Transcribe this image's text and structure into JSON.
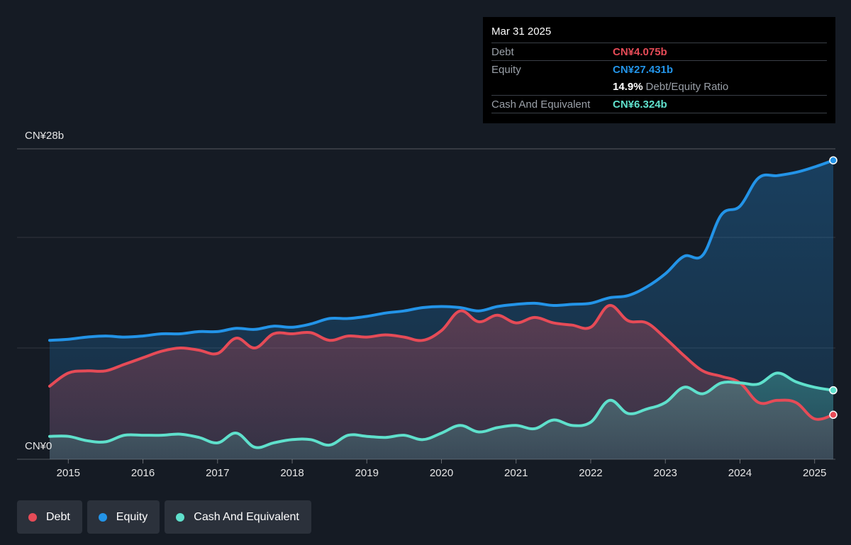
{
  "tooltip": {
    "date": "Mar 31 2025",
    "debt_label": "Debt",
    "debt_value": "CN¥4.075b",
    "equity_label": "Equity",
    "equity_value": "CN¥27.431b",
    "ratio_value": "14.9%",
    "ratio_label": "Debt/Equity Ratio",
    "cash_label": "Cash And Equivalent",
    "cash_value": "CN¥6.324b"
  },
  "legend": {
    "debt": "Debt",
    "equity": "Equity",
    "cash": "Cash And Equivalent"
  },
  "colors": {
    "debt": "#e64b57",
    "equity": "#2394e8",
    "cash": "#5fe0cc",
    "background": "#151b24"
  },
  "chart_data": {
    "type": "area",
    "y_top_label": "CN¥28b",
    "y_bottom_label": "CN¥0",
    "ylim": [
      0,
      28
    ],
    "xlim": [
      2014.75,
      2025.25
    ],
    "x_ticks": [
      "2015",
      "2016",
      "2017",
      "2018",
      "2019",
      "2020",
      "2021",
      "2022",
      "2023",
      "2024",
      "2025"
    ],
    "x_tick_values": [
      2015,
      2016,
      2017,
      2018,
      2019,
      2020,
      2021,
      2022,
      2023,
      2024,
      2025
    ],
    "series": [
      {
        "name": "Equity",
        "x": [
          2014.75,
          2015.0,
          2015.25,
          2015.5,
          2015.75,
          2016.0,
          2016.25,
          2016.5,
          2016.75,
          2017.0,
          2017.25,
          2017.5,
          2017.75,
          2018.0,
          2018.25,
          2018.5,
          2018.75,
          2019.0,
          2019.25,
          2019.5,
          2019.75,
          2020.0,
          2020.25,
          2020.5,
          2020.75,
          2021.0,
          2021.25,
          2021.5,
          2021.75,
          2022.0,
          2022.25,
          2022.5,
          2022.75,
          2023.0,
          2023.25,
          2023.5,
          2023.75,
          2024.0,
          2024.25,
          2024.5,
          2024.75,
          2025.0,
          2025.25
        ],
        "values": [
          10.9,
          11.0,
          11.2,
          11.3,
          11.2,
          11.3,
          11.5,
          11.5,
          11.7,
          11.7,
          12.0,
          11.9,
          12.2,
          12.1,
          12.4,
          12.9,
          12.9,
          13.1,
          13.4,
          13.6,
          13.9,
          14.0,
          13.9,
          13.6,
          14.0,
          14.2,
          14.3,
          14.1,
          14.2,
          14.3,
          14.8,
          15.0,
          15.8,
          17.0,
          18.6,
          18.7,
          22.4,
          23.2,
          25.8,
          26.0,
          26.3,
          26.8,
          27.4
        ]
      },
      {
        "name": "Debt",
        "x": [
          2014.75,
          2015.0,
          2015.25,
          2015.5,
          2015.75,
          2016.0,
          2016.25,
          2016.5,
          2016.75,
          2017.0,
          2017.25,
          2017.5,
          2017.75,
          2018.0,
          2018.25,
          2018.5,
          2018.75,
          2019.0,
          2019.25,
          2019.5,
          2019.75,
          2020.0,
          2020.25,
          2020.5,
          2020.75,
          2021.0,
          2021.25,
          2021.5,
          2021.75,
          2022.0,
          2022.25,
          2022.5,
          2022.75,
          2023.0,
          2023.25,
          2023.5,
          2023.75,
          2024.0,
          2024.25,
          2024.5,
          2024.75,
          2025.0,
          2025.25
        ],
        "values": [
          6.7,
          7.9,
          8.1,
          8.1,
          8.7,
          9.3,
          9.9,
          10.2,
          10.0,
          9.7,
          11.1,
          10.2,
          11.5,
          11.5,
          11.6,
          10.9,
          11.3,
          11.2,
          11.4,
          11.2,
          10.9,
          11.8,
          13.6,
          12.6,
          13.2,
          12.5,
          13.0,
          12.5,
          12.3,
          12.1,
          14.1,
          12.7,
          12.5,
          11.1,
          9.5,
          8.1,
          7.6,
          7.0,
          5.2,
          5.4,
          5.2,
          3.7,
          4.075
        ]
      },
      {
        "name": "Cash And Equivalent",
        "x": [
          2014.75,
          2015.0,
          2015.25,
          2015.5,
          2015.75,
          2016.0,
          2016.25,
          2016.5,
          2016.75,
          2017.0,
          2017.25,
          2017.5,
          2017.75,
          2018.0,
          2018.25,
          2018.5,
          2018.75,
          2019.0,
          2019.25,
          2019.5,
          2019.75,
          2020.0,
          2020.25,
          2020.5,
          2020.75,
          2021.0,
          2021.25,
          2021.5,
          2021.75,
          2022.0,
          2022.25,
          2022.5,
          2022.75,
          2023.0,
          2023.25,
          2023.5,
          2023.75,
          2024.0,
          2024.25,
          2024.5,
          2024.75,
          2025.0,
          2025.25
        ],
        "values": [
          2.1,
          2.1,
          1.7,
          1.6,
          2.2,
          2.2,
          2.2,
          2.3,
          2.0,
          1.5,
          2.4,
          1.1,
          1.5,
          1.8,
          1.8,
          1.3,
          2.2,
          2.1,
          2.0,
          2.2,
          1.8,
          2.4,
          3.1,
          2.5,
          2.9,
          3.1,
          2.8,
          3.6,
          3.1,
          3.4,
          5.4,
          4.2,
          4.6,
          5.2,
          6.6,
          6.0,
          7.0,
          7.0,
          6.9,
          7.9,
          7.1,
          6.6,
          6.324
        ]
      }
    ]
  }
}
